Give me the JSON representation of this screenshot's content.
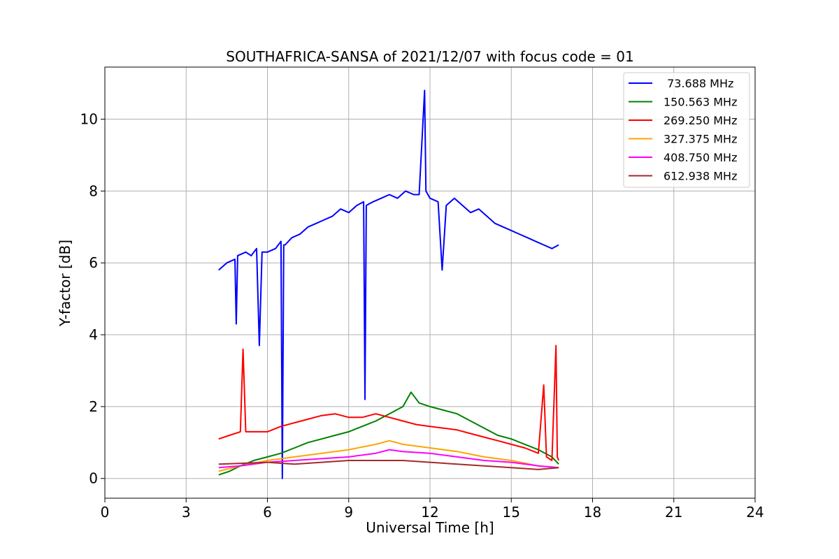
{
  "chart_data": {
    "type": "line",
    "title": "SOUTHAFRICA-SANSA of 2021/12/07 with focus code = 01",
    "xlabel": "Universal Time [h]",
    "ylabel": "Y-factor [dB]",
    "xlim": [
      0,
      24
    ],
    "ylim": [
      -0.55,
      11.45
    ],
    "xticks": [
      0,
      3,
      6,
      9,
      12,
      15,
      18,
      21,
      24
    ],
    "xtick_labels": [
      "0",
      "3",
      "6",
      "9",
      "12",
      "15",
      "18",
      "21",
      "24"
    ],
    "yticks": [
      0,
      2,
      4,
      6,
      8,
      10
    ],
    "ytick_labels": [
      "0",
      "2",
      "4",
      "6",
      "8",
      "10"
    ],
    "grid": true,
    "legend_position": "top-right",
    "series": [
      {
        "name": " 73.688 MHz",
        "color": "#0000ff",
        "x": [
          4.2,
          4.5,
          4.8,
          4.85,
          4.9,
          5.2,
          5.4,
          5.6,
          5.7,
          5.8,
          6.0,
          6.3,
          6.5,
          6.55,
          6.6,
          6.65,
          6.9,
          7.2,
          7.5,
          7.8,
          8.1,
          8.4,
          8.7,
          9.0,
          9.3,
          9.55,
          9.6,
          9.65,
          9.9,
          10.2,
          10.5,
          10.8,
          11.1,
          11.4,
          11.6,
          11.8,
          11.85,
          12.0,
          12.3,
          12.45,
          12.6,
          12.9,
          13.2,
          13.5,
          13.8,
          14.1,
          14.4,
          14.7,
          15.0,
          15.3,
          15.6,
          15.9,
          16.2,
          16.5,
          16.75
        ],
        "y": [
          5.8,
          6.0,
          6.1,
          4.3,
          6.2,
          6.3,
          6.2,
          6.4,
          3.7,
          6.3,
          6.3,
          6.4,
          6.6,
          0.0,
          6.5,
          6.5,
          6.7,
          6.8,
          7.0,
          7.1,
          7.2,
          7.3,
          7.5,
          7.4,
          7.6,
          7.7,
          2.2,
          7.6,
          7.7,
          7.8,
          7.9,
          7.8,
          8.0,
          7.9,
          7.9,
          10.8,
          8.0,
          7.8,
          7.7,
          5.8,
          7.6,
          7.8,
          7.6,
          7.4,
          7.5,
          7.3,
          7.1,
          7.0,
          6.9,
          6.8,
          6.7,
          6.6,
          6.5,
          6.4,
          6.5
        ]
      },
      {
        "name": "150.563 MHz",
        "color": "#008000",
        "x": [
          4.2,
          4.6,
          5.0,
          5.5,
          6.0,
          6.5,
          7.0,
          7.5,
          8.0,
          8.5,
          9.0,
          9.5,
          10.0,
          10.5,
          11.0,
          11.3,
          11.6,
          12.0,
          12.5,
          13.0,
          13.5,
          14.0,
          14.5,
          15.0,
          15.5,
          16.0,
          16.5,
          16.75
        ],
        "y": [
          0.1,
          0.2,
          0.35,
          0.5,
          0.6,
          0.7,
          0.85,
          1.0,
          1.1,
          1.2,
          1.3,
          1.45,
          1.6,
          1.8,
          2.0,
          2.4,
          2.1,
          2.0,
          1.9,
          1.8,
          1.6,
          1.4,
          1.2,
          1.1,
          0.95,
          0.8,
          0.6,
          0.4
        ]
      },
      {
        "name": "269.250 MHz",
        "color": "#ff0000",
        "x": [
          4.2,
          4.6,
          5.0,
          5.1,
          5.2,
          5.5,
          6.0,
          6.5,
          7.0,
          7.5,
          8.0,
          8.5,
          9.0,
          9.5,
          10.0,
          10.5,
          11.0,
          11.5,
          12.0,
          12.5,
          13.0,
          13.5,
          14.0,
          14.5,
          15.0,
          15.5,
          16.0,
          16.2,
          16.3,
          16.5,
          16.65,
          16.7,
          16.75
        ],
        "y": [
          1.1,
          1.2,
          1.3,
          3.6,
          1.3,
          1.3,
          1.3,
          1.45,
          1.55,
          1.65,
          1.75,
          1.8,
          1.7,
          1.7,
          1.8,
          1.7,
          1.6,
          1.5,
          1.45,
          1.4,
          1.35,
          1.25,
          1.15,
          1.05,
          0.95,
          0.85,
          0.7,
          2.6,
          0.6,
          0.5,
          3.7,
          0.6,
          0.5
        ]
      },
      {
        "name": "327.375 MHz",
        "color": "#ffa500",
        "x": [
          4.2,
          5.0,
          6.0,
          7.0,
          8.0,
          9.0,
          10.0,
          10.5,
          11.0,
          12.0,
          13.0,
          14.0,
          15.0,
          16.0,
          16.75
        ],
        "y": [
          0.2,
          0.35,
          0.5,
          0.6,
          0.7,
          0.8,
          0.95,
          1.05,
          0.95,
          0.85,
          0.75,
          0.6,
          0.5,
          0.35,
          0.3
        ]
      },
      {
        "name": "408.750 MHz",
        "color": "#ff00ff",
        "x": [
          4.2,
          5.0,
          6.0,
          7.0,
          8.0,
          9.0,
          10.0,
          10.5,
          11.0,
          12.0,
          13.0,
          14.0,
          15.0,
          16.0,
          16.75
        ],
        "y": [
          0.3,
          0.35,
          0.45,
          0.5,
          0.55,
          0.6,
          0.7,
          0.8,
          0.75,
          0.7,
          0.6,
          0.5,
          0.45,
          0.35,
          0.3
        ]
      },
      {
        "name": "612.938 MHz",
        "color": "#a52a2a",
        "x": [
          4.2,
          5.0,
          6.0,
          7.0,
          8.0,
          9.0,
          10.0,
          11.0,
          12.0,
          13.0,
          14.0,
          15.0,
          16.0,
          16.75
        ],
        "y": [
          0.4,
          0.42,
          0.45,
          0.4,
          0.45,
          0.5,
          0.5,
          0.5,
          0.45,
          0.4,
          0.35,
          0.3,
          0.25,
          0.3
        ]
      }
    ]
  }
}
